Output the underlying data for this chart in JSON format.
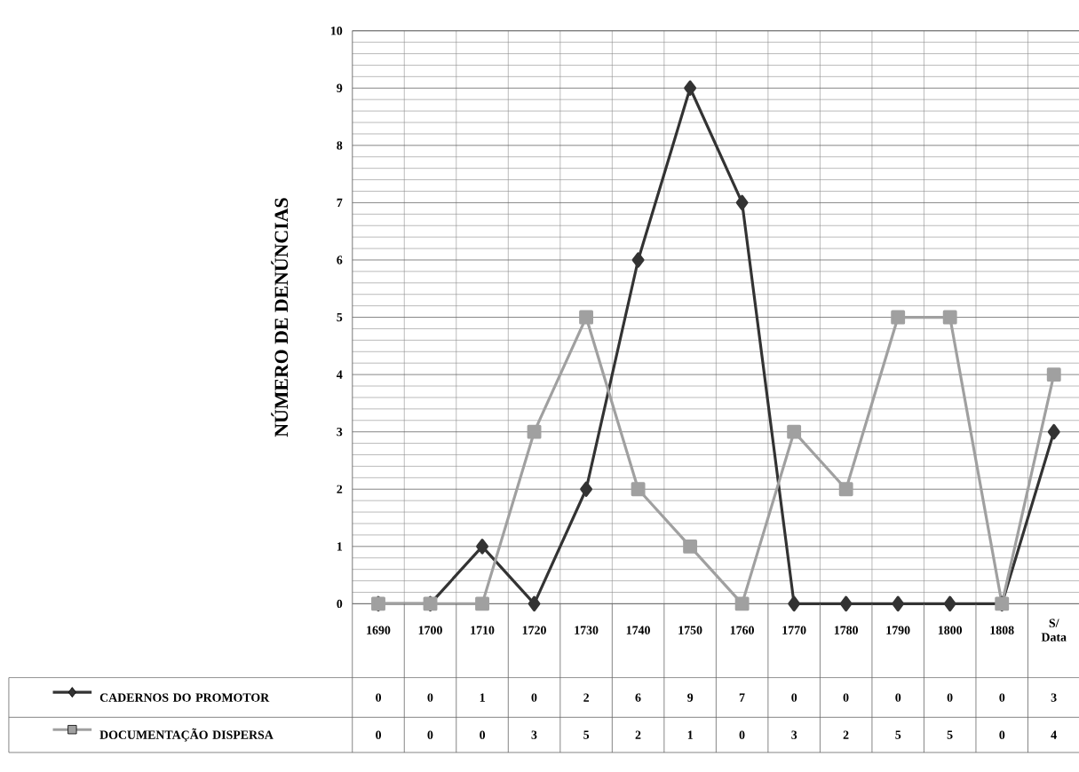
{
  "chart_data": {
    "type": "line",
    "ylabel": "NÚMERO DE DENÚNCIAS",
    "categories": [
      "1690",
      "1700",
      "1710",
      "1720",
      "1730",
      "1740",
      "1750",
      "1760",
      "1770",
      "1780",
      "1790",
      "1800",
      "1808",
      "S/ Data"
    ],
    "ylim": [
      0,
      10
    ],
    "yticks": [
      0,
      1,
      2,
      3,
      4,
      5,
      6,
      7,
      8,
      9,
      10
    ],
    "grid": true,
    "legend": "bottom left",
    "data_labels": true,
    "line_style": "solid",
    "series": [
      {
        "name": "CADERNOS DO PROMOTOR",
        "color": "#333333",
        "marker": "diamond",
        "values": [
          0,
          0,
          1,
          0,
          2,
          6,
          9,
          7,
          0,
          0,
          0,
          0,
          0,
          3
        ]
      },
      {
        "name": "DOCUMENTAÇÃO DISPERSA",
        "color": "#a0a0a0",
        "marker": "square",
        "values": [
          0,
          0,
          0,
          3,
          5,
          2,
          1,
          0,
          3,
          2,
          5,
          5,
          0,
          4
        ]
      }
    ]
  }
}
